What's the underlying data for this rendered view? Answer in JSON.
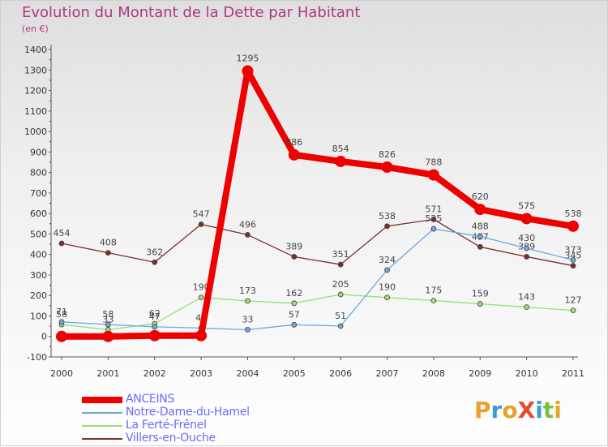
{
  "header": {
    "title": "Evolution du Montant de la Dette par Habitant",
    "subtitle": "(en €)"
  },
  "logo": {
    "text": "ProXiti",
    "colors": [
      "#e8a22b",
      "#3c9bd6",
      "#e8a22b",
      "#e64d2e",
      "#3c9bd6",
      "#7bbf3a",
      "#e8a22b"
    ]
  },
  "chart_data": {
    "type": "line",
    "title": "Evolution du Montant de la Dette par Habitant",
    "subtitle": "(en €)",
    "xlabel": "",
    "ylabel": "",
    "x": [
      "2000",
      "2001",
      "2002",
      "2003",
      "2004",
      "2005",
      "2006",
      "2007",
      "2008",
      "2009",
      "2010",
      "2011"
    ],
    "ylim": [
      -100,
      1400
    ],
    "yticks": [
      -100,
      0,
      100,
      200,
      300,
      400,
      500,
      600,
      700,
      800,
      900,
      1000,
      1100,
      1200,
      1300,
      1400
    ],
    "grid": false,
    "legend_position": "bottom-left",
    "series": [
      {
        "name": "Villers-en-Ouche",
        "color": "#7b2f2f",
        "width": 1.3,
        "values": [
          454,
          408,
          362,
          547,
          496,
          389,
          351,
          538,
          571,
          437,
          389,
          345
        ],
        "labels": [
          "454",
          "408",
          "362",
          "547",
          "496",
          "389",
          "351",
          "538",
          "571",
          "437",
          "389",
          "345"
        ]
      },
      {
        "name": "La Ferté-Frênel",
        "color": "#99dd77",
        "width": 1.3,
        "values": [
          58,
          33,
          62,
          190,
          173,
          162,
          205,
          190,
          175,
          159,
          143,
          127
        ],
        "labels": [
          "58",
          "33",
          "62",
          "190",
          "173",
          "162",
          "205",
          "190",
          "175",
          "159",
          "143",
          "127"
        ]
      },
      {
        "name": "Notre-Dame-du-Hamel",
        "color": "#6fa8dc",
        "width": 1.3,
        "values": [
          71,
          58,
          47,
          41,
          33,
          57,
          51,
          324,
          525,
          488,
          430,
          373
        ],
        "labels": [
          "71",
          "58",
          "47",
          "41",
          "33",
          "57",
          "51",
          "324",
          "525",
          "488",
          "430",
          "373"
        ]
      },
      {
        "name": "ANCEINS",
        "color": "#ee0000",
        "width": 8,
        "values": [
          0,
          0,
          4,
          4,
          1295,
          886,
          854,
          826,
          788,
          620,
          575,
          538
        ],
        "labels": [
          "",
          "",
          "",
          "",
          "1295",
          "886",
          "854",
          "826",
          "788",
          "620",
          "575",
          "538"
        ]
      }
    ],
    "legend": [
      {
        "name": "ANCEINS",
        "color": "#ee0000"
      },
      {
        "name": "Notre-Dame-du-Hamel",
        "color": "#6fa8dc"
      },
      {
        "name": "La Ferté-Frênel",
        "color": "#99dd77"
      },
      {
        "name": "Villers-en-Ouche",
        "color": "#7b2f2f"
      }
    ]
  }
}
